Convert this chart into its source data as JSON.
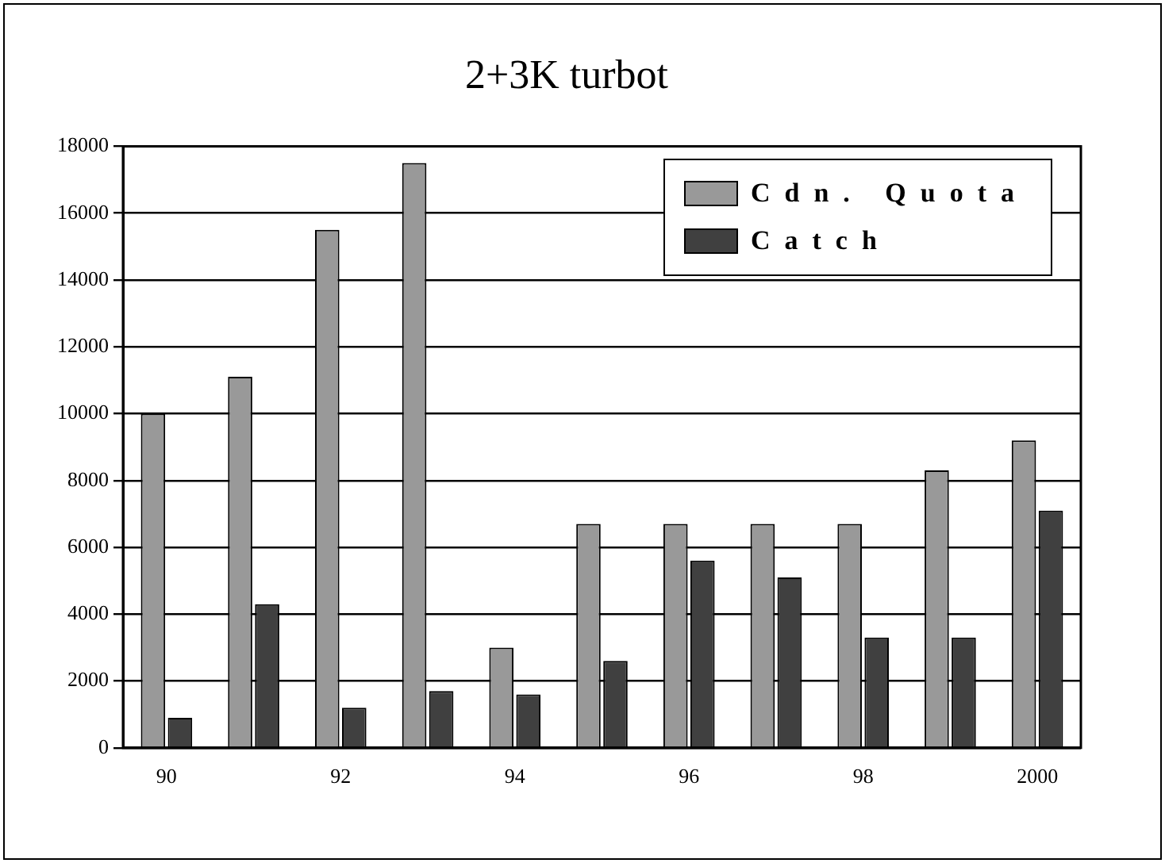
{
  "chart_data": {
    "type": "bar",
    "title": "2+3K turbot",
    "categories": [
      "90",
      null,
      "92",
      null,
      "94",
      null,
      "96",
      null,
      "98",
      null,
      "2000"
    ],
    "series": [
      {
        "name": "Cdn. Quota",
        "color": "#999999",
        "values": [
          10000,
          11100,
          15500,
          17500,
          3000,
          6700,
          6700,
          6700,
          6700,
          8300,
          9200
        ]
      },
      {
        "name": "Catch",
        "color": "#404040",
        "values": [
          900,
          4300,
          1200,
          1700,
          1600,
          2600,
          5600,
          5100,
          3300,
          3300,
          7100
        ]
      }
    ],
    "ylim": [
      0,
      18000
    ],
    "yticks": [
      0,
      2000,
      4000,
      6000,
      8000,
      10000,
      12000,
      14000,
      16000,
      18000
    ],
    "grid": "y",
    "legend": "top right"
  }
}
